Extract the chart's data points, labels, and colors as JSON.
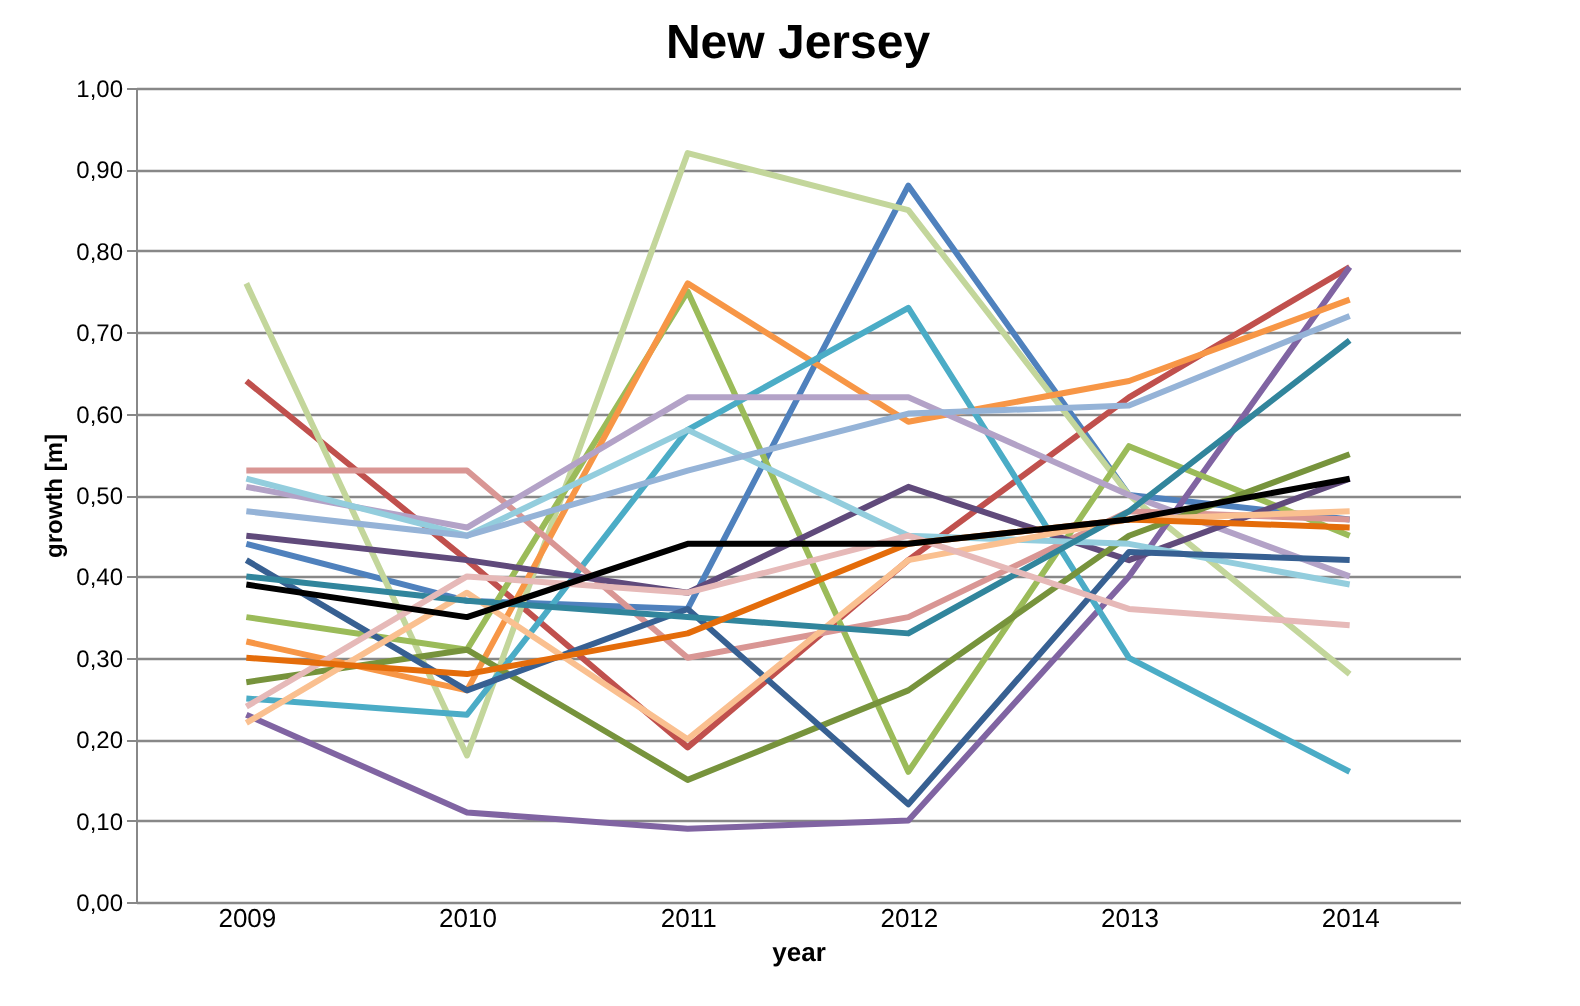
{
  "chart_data": {
    "type": "line",
    "title": "New Jersey",
    "xlabel": "year",
    "ylabel": "growth [m]",
    "categories": [
      "2009",
      "2010",
      "2011",
      "2012",
      "2013",
      "2014"
    ],
    "ylim": [
      0,
      1
    ],
    "yticks": [
      {
        "value": 0,
        "label": "0,00"
      },
      {
        "value": 0.1,
        "label": "0,10"
      },
      {
        "value": 0.2,
        "label": "0,20"
      },
      {
        "value": 0.3,
        "label": "0,30"
      },
      {
        "value": 0.4,
        "label": "0,40"
      },
      {
        "value": 0.5,
        "label": "0,50"
      },
      {
        "value": 0.6,
        "label": "0,60"
      },
      {
        "value": 0.7,
        "label": "0,70"
      },
      {
        "value": 0.8,
        "label": "0,80"
      },
      {
        "value": 0.9,
        "label": "0,90"
      },
      {
        "value": 1,
        "label": "1,00"
      }
    ],
    "grid": "y",
    "legend": false,
    "marker": "none",
    "line_style": "solid",
    "series": [
      {
        "color": "#4f81bd",
        "values": [
          0.44,
          0.37,
          0.36,
          0.88,
          0.5,
          0.47
        ]
      },
      {
        "color": "#c0504d",
        "values": [
          0.64,
          0.42,
          0.19,
          0.42,
          0.62,
          0.78
        ]
      },
      {
        "color": "#c3d69b",
        "values": [
          0.76,
          0.18,
          0.92,
          0.85,
          0.5,
          0.28
        ]
      },
      {
        "color": "#8064a2",
        "values": [
          0.23,
          0.11,
          0.09,
          0.1,
          0.4,
          0.78
        ]
      },
      {
        "color": "#9bbb59",
        "values": [
          0.35,
          0.31,
          0.75,
          0.16,
          0.56,
          0.45
        ]
      },
      {
        "color": "#f79646",
        "values": [
          0.32,
          0.26,
          0.76,
          0.59,
          0.64,
          0.74
        ]
      },
      {
        "color": "#4bacc6",
        "values": [
          0.25,
          0.23,
          0.58,
          0.73,
          0.3,
          0.16
        ]
      },
      {
        "color": "#d99694",
        "values": [
          0.53,
          0.53,
          0.3,
          0.35,
          0.48,
          0.47
        ]
      },
      {
        "color": "#b3a2c7",
        "values": [
          0.51,
          0.46,
          0.62,
          0.62,
          0.5,
          0.4
        ]
      },
      {
        "color": "#604a7b",
        "values": [
          0.45,
          0.42,
          0.38,
          0.51,
          0.42,
          0.52
        ]
      },
      {
        "color": "#77933c",
        "values": [
          0.27,
          0.31,
          0.15,
          0.26,
          0.45,
          0.55
        ]
      },
      {
        "color": "#93cddd",
        "values": [
          0.52,
          0.45,
          0.58,
          0.45,
          0.44,
          0.39
        ]
      },
      {
        "color": "#376092",
        "values": [
          0.42,
          0.26,
          0.36,
          0.12,
          0.43,
          0.42
        ]
      },
      {
        "color": "#fac090",
        "values": [
          0.22,
          0.38,
          0.2,
          0.42,
          0.47,
          0.48
        ]
      },
      {
        "color": "#31859c",
        "values": [
          0.4,
          0.37,
          0.35,
          0.33,
          0.48,
          0.69
        ]
      },
      {
        "color": "#e6b9b8",
        "values": [
          0.24,
          0.4,
          0.38,
          0.45,
          0.36,
          0.34
        ]
      },
      {
        "color": "#e46c0a",
        "values": [
          0.3,
          0.28,
          0.33,
          0.44,
          0.47,
          0.46
        ]
      },
      {
        "color": "#95b3d7",
        "values": [
          0.48,
          0.45,
          0.53,
          0.6,
          0.61,
          0.72
        ]
      },
      {
        "color": "#000000",
        "values": [
          0.39,
          0.35,
          0.44,
          0.44,
          0.47,
          0.52
        ]
      }
    ]
  }
}
